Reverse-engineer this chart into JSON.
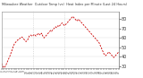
{
  "title_line1": "Milwaukee Weather  Outdoor Temp (vs)  Heat Index per Minute (Last 24 Hours)",
  "title_line2": "Last 24 Hours",
  "bg_color": "#ffffff",
  "line_color": "#cc0000",
  "vline_color": "#bbbbbb",
  "ylim": [
    28,
    88
  ],
  "ytick_values": [
    30,
    40,
    50,
    60,
    70,
    80
  ],
  "ytick_labels": [
    "30",
    "40",
    "50",
    "60",
    "70",
    "80"
  ],
  "vlines_x": [
    0.27,
    0.54
  ],
  "n_xticks": 48,
  "y_values": [
    33,
    31,
    29,
    28,
    29,
    30,
    32,
    34,
    36,
    38,
    40,
    42,
    45,
    47,
    50,
    52,
    54,
    55,
    56,
    57,
    58,
    58,
    59,
    60,
    60,
    61,
    60,
    59,
    58,
    57,
    56,
    57,
    58,
    60,
    62,
    63,
    63,
    62,
    62,
    63,
    64,
    63,
    62,
    63,
    64,
    65,
    64,
    63,
    64,
    65,
    63,
    61,
    60,
    61,
    62,
    63,
    64,
    65,
    66,
    67,
    68,
    67,
    68,
    69,
    70,
    71,
    72,
    71,
    72,
    73,
    72,
    73,
    74,
    75,
    76,
    75,
    74,
    73,
    74,
    75,
    76,
    77,
    78,
    79,
    80,
    81,
    82,
    83,
    82,
    81,
    80,
    79,
    78,
    79,
    80,
    79,
    78,
    77,
    76,
    75,
    74,
    73,
    72,
    71,
    70,
    69,
    68,
    67,
    66,
    65,
    64,
    63,
    62,
    61,
    60,
    59,
    58,
    57,
    56,
    55,
    53,
    51,
    49,
    47,
    45,
    43,
    42,
    41,
    42,
    43,
    44,
    45,
    44,
    43,
    42,
    41,
    40,
    39,
    40,
    41,
    42,
    43,
    44,
    45
  ]
}
